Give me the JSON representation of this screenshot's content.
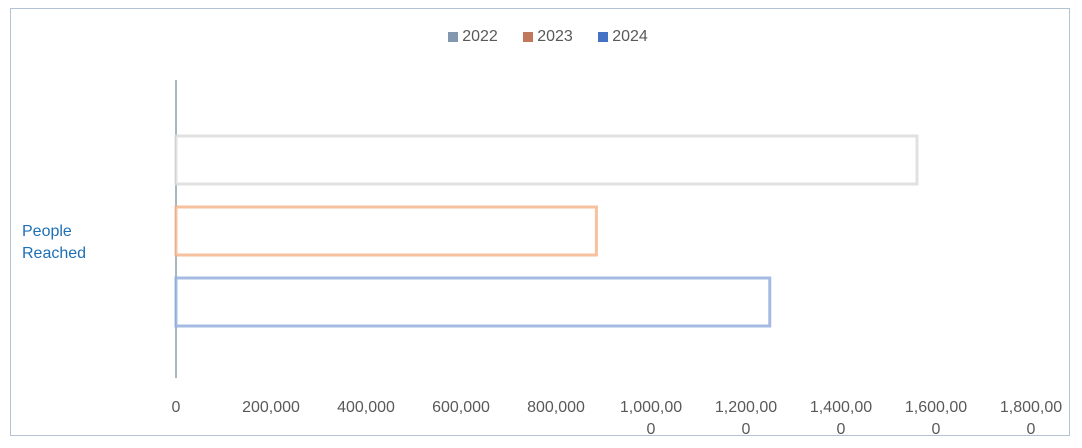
{
  "chart_data": {
    "type": "bar",
    "orientation": "horizontal",
    "categories": [
      "People Reached"
    ],
    "series": [
      {
        "name": "2022",
        "color": "#8497b0",
        "bar_color": "#d9d9d9",
        "values": [
          1560000
        ]
      },
      {
        "name": "2023",
        "color": "#c0785a",
        "bar_color": "#f4b183",
        "values": [
          885000
        ]
      },
      {
        "name": "2024",
        "color": "#4472c4",
        "bar_color": "#8faadc",
        "values": [
          1250000
        ]
      }
    ],
    "xlim": [
      0,
      1800000
    ],
    "xticks": [
      0,
      {
        "value": 200000,
        "label": "200,000"
      },
      {
        "value": 400000,
        "label": "400,000"
      },
      {
        "value": 600000,
        "label": "600,000"
      },
      {
        "value": 800000,
        "label": "800,000"
      },
      {
        "value": 1000000,
        "label": "1,000,000"
      },
      {
        "value": 1200000,
        "label": "1,200,000"
      },
      {
        "value": 1400000,
        "label": "1,400,000"
      },
      {
        "value": 1600000,
        "label": "1,600,000"
      },
      {
        "value": 1800000,
        "label": "1,800,000"
      }
    ],
    "legend": "top",
    "grid": false
  }
}
